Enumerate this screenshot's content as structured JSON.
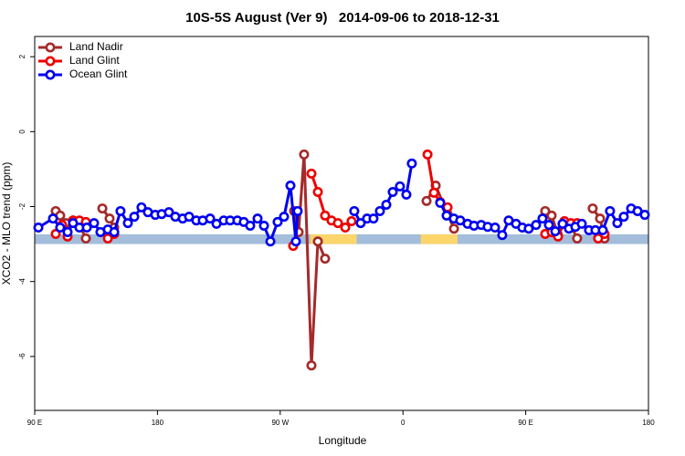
{
  "chart_data": {
    "type": "line",
    "title": "10S-5S August (Ver 9)   2014-09-06 to 2018-12-31",
    "xlabel": "Longitude",
    "ylabel": "XCO2 - MLO trend (ppm)",
    "xlim": [
      90,
      540
    ],
    "ylim": [
      -7.44,
      2.54
    ],
    "xticks": [
      {
        "value": 90,
        "label": "90 E"
      },
      180,
      {
        "value": 270,
        "label": "90 W"
      },
      {
        "value": 360,
        "label": "0"
      },
      {
        "value": 450,
        "label": "90 E"
      },
      {
        "value": 540,
        "label": "180"
      }
    ],
    "yticks": [
      -6,
      -4,
      -2,
      0,
      2
    ],
    "legend": "top-left",
    "band": {
      "y_range": [
        -2.74,
        -3.0
      ],
      "color": "#a3bddb",
      "land_color": "#fcd56b",
      "land_x": [
        [
          292,
          326
        ],
        [
          373,
          400
        ]
      ]
    },
    "series": [
      {
        "name": "Land Nadir",
        "color": "#a52a2a",
        "x": [
          105.4,
          108.7,
          112.8,
          118.1,
          122.8,
          127.5,
          null,
          139.6,
          144.9,
          148.3,
          null,
          280.2,
          283.5,
          287.5,
          292.9,
          297.6,
          302.9,
          null,
          377.3,
          384.0,
          392.7,
          397.4,
          null,
          464.3,
          469.0,
          473.7,
          478.4,
          483.1,
          487.7,
          null,
          499.1,
          504.5,
          507.8
        ],
        "values": [
          -2.12,
          -2.24,
          -2.44,
          -2.37,
          -2.49,
          -2.85,
          null,
          -2.05,
          -2.32,
          -2.56,
          null,
          -2.12,
          -2.68,
          -0.61,
          -6.24,
          -2.93,
          -3.39,
          null,
          -1.85,
          -1.44,
          -2.2,
          -2.59,
          null,
          -2.12,
          -2.24,
          -2.76,
          -2.46,
          -2.51,
          -2.85,
          null,
          -2.05,
          -2.32,
          -2.85
        ]
      },
      {
        "name": "Land Glint",
        "color": "#ee0000",
        "x": [
          105.4,
          110.1,
          114.1,
          118.1,
          122.8,
          127.5,
          null,
          143.6,
          148.3,
          null,
          279.5,
          null,
          292.9,
          297.6,
          302.9,
          307.6,
          312.3,
          317.7,
          322.3,
          null,
          378.0,
          382.7,
          387.3,
          392.7,
          null,
          464.3,
          469.0,
          473.7,
          478.4,
          483.1,
          487.7,
          null,
          503.1,
          507.8
        ],
        "values": [
          -2.73,
          -2.49,
          -2.8,
          -2.37,
          -2.37,
          -2.41,
          null,
          -2.85,
          -2.73,
          null,
          -3.05,
          null,
          -1.12,
          -1.61,
          -2.24,
          -2.37,
          -2.44,
          -2.56,
          -2.39,
          null,
          -0.61,
          -1.63,
          -1.88,
          -2.02,
          null,
          -2.73,
          -2.68,
          -2.8,
          -2.39,
          -2.44,
          -2.44,
          null,
          -2.85,
          -2.73
        ]
      },
      {
        "name": "Ocean Glint",
        "color": "#0000ee",
        "x": [
          92.7,
          103.4,
          108.7,
          114.1,
          118.1,
          122.8,
          128.2,
          133.5,
          138.2,
          143.6,
          148.3,
          152.9,
          158.3,
          163.0,
          168.3,
          173.0,
          178.4,
          183.1,
          188.4,
          193.1,
          198.5,
          203.2,
          208.5,
          213.2,
          218.6,
          223.3,
          228.6,
          233.3,
          238.6,
          243.3,
          248.0,
          253.4,
          258.1,
          262.8,
          268.1,
          272.8,
          277.5,
          281.5,
          282.8,
          null,
          324.3,
          329.0,
          333.7,
          338.4,
          343.1,
          347.8,
          352.5,
          357.8,
          362.5,
          366.5,
          null,
          387.3,
          392.0,
          397.3,
          402.0,
          407.4,
          412.1,
          417.4,
          422.1,
          427.5,
          432.8,
          437.5,
          442.9,
          447.5,
          452.2,
          457.6,
          462.3,
          467.0,
          471.7,
          477.0,
          481.7,
          486.4,
          491.1,
          496.4,
          501.1,
          506.5,
          511.8,
          517.2,
          521.9,
          527.3,
          532.0,
          537.3
        ],
        "values": [
          -2.56,
          -2.32,
          -2.56,
          -2.68,
          -2.44,
          -2.56,
          -2.56,
          -2.44,
          -2.68,
          -2.61,
          -2.68,
          -2.12,
          -2.44,
          -2.27,
          -2.02,
          -2.15,
          -2.22,
          -2.2,
          -2.15,
          -2.27,
          -2.32,
          -2.27,
          -2.37,
          -2.37,
          -2.32,
          -2.46,
          -2.37,
          -2.37,
          -2.37,
          -2.41,
          -2.51,
          -2.32,
          -2.51,
          -2.93,
          -2.41,
          -2.27,
          -1.44,
          -2.93,
          -2.12,
          null,
          -2.12,
          -2.44,
          -2.32,
          -2.32,
          -2.12,
          -1.95,
          -1.61,
          -1.46,
          -1.68,
          -0.85,
          null,
          -1.9,
          -2.24,
          -2.32,
          -2.37,
          -2.46,
          -2.51,
          -2.49,
          -2.54,
          -2.56,
          -2.76,
          -2.37,
          -2.46,
          -2.56,
          -2.59,
          -2.49,
          -2.32,
          -2.49,
          -2.66,
          -2.46,
          -2.59,
          -2.54,
          -2.46,
          -2.63,
          -2.63,
          -2.63,
          -2.12,
          -2.44,
          -2.27,
          -2.05,
          -2.12,
          -2.22
        ]
      }
    ]
  }
}
